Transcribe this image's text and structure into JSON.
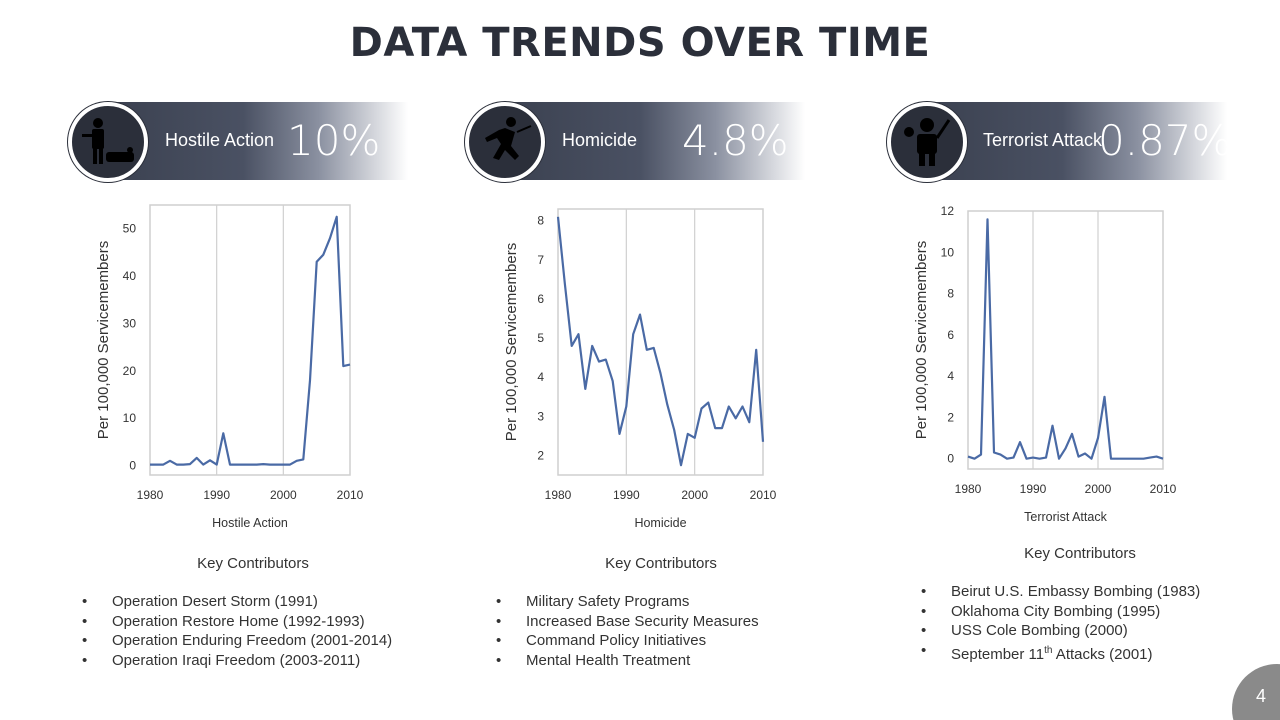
{
  "title": "DATA TRENDS OVER TIME",
  "page_number": "4",
  "panels": [
    {
      "label": "Hostile Action",
      "percent": "10%",
      "icon": "hostile-action-icon"
    },
    {
      "label": "Homicide",
      "percent": "4.8%",
      "icon": "homicide-icon"
    },
    {
      "label": "Terrorist Attack",
      "percent": "0.87%",
      "icon": "terrorist-attack-icon"
    }
  ],
  "contributors": [
    {
      "heading": "Key Contributors",
      "items": [
        "Operation Desert Storm (1991)",
        "Operation Restore Home (1992-1993)",
        "Operation Enduring Freedom (2001-2014)",
        "Operation Iraqi Freedom (2003-2011)"
      ]
    },
    {
      "heading": "Key Contributors",
      "items": [
        "Military Safety Programs",
        "Increased Base Security Measures",
        "Command Policy Initiatives",
        "Mental Health Treatment"
      ]
    },
    {
      "heading": "Key Contributors",
      "items": [
        "Beirut U.S. Embassy Bombing (1983)",
        "Oklahoma City Bombing (1995)",
        "USS Cole Bombing (2000)",
        "September 11th Attacks (2001)"
      ]
    }
  ],
  "chart_data": [
    {
      "type": "line",
      "xlabel": "Hostile Action",
      "ylabel": "Per 100,000 Servicemembers",
      "xlim": [
        1980,
        2010
      ],
      "ylim": [
        -2,
        55
      ],
      "xticks": [
        1980,
        1990,
        2000,
        2010
      ],
      "yticks": [
        0,
        10,
        20,
        30,
        40,
        50
      ],
      "grid": "vertical",
      "color": "#4a6aa5",
      "x": [
        1980,
        1981,
        1982,
        1983,
        1984,
        1985,
        1986,
        1987,
        1988,
        1989,
        1990,
        1991,
        1992,
        1993,
        1994,
        1995,
        1996,
        1997,
        1998,
        1999,
        2000,
        2001,
        2002,
        2003,
        2004,
        2005,
        2006,
        2007,
        2008,
        2009,
        2010
      ],
      "y": [
        0.2,
        0.2,
        0.2,
        1.0,
        0.2,
        0.2,
        0.3,
        1.6,
        0.2,
        1.1,
        0.2,
        6.8,
        0.2,
        0.2,
        0.2,
        0.2,
        0.2,
        0.3,
        0.2,
        0.2,
        0.2,
        0.2,
        1.0,
        1.3,
        18.0,
        43.0,
        44.5,
        48.0,
        52.5,
        21.0,
        21.3
      ]
    },
    {
      "type": "line",
      "xlabel": "Homicide",
      "ylabel": "Per 100,000 Servicemembers",
      "xlim": [
        1980,
        2010
      ],
      "ylim": [
        1.5,
        8.3
      ],
      "xticks": [
        1980,
        1990,
        2000,
        2010
      ],
      "yticks": [
        2,
        3,
        4,
        5,
        6,
        7,
        8
      ],
      "grid": "vertical",
      "color": "#4a6aa5",
      "x": [
        1980,
        1981,
        1982,
        1983,
        1984,
        1985,
        1986,
        1987,
        1988,
        1989,
        1990,
        1991,
        1992,
        1993,
        1994,
        1995,
        1996,
        1997,
        1998,
        1999,
        2000,
        2001,
        2002,
        2003,
        2004,
        2005,
        2006,
        2007,
        2008,
        2009,
        2010
      ],
      "y": [
        8.1,
        6.4,
        4.8,
        5.1,
        3.7,
        4.8,
        4.4,
        4.45,
        3.9,
        2.55,
        3.25,
        5.1,
        5.6,
        4.7,
        4.75,
        4.1,
        3.3,
        2.65,
        1.75,
        2.55,
        2.45,
        3.2,
        3.35,
        2.7,
        2.7,
        3.25,
        2.95,
        3.25,
        2.85,
        4.7,
        2.35
      ]
    },
    {
      "type": "line",
      "xlabel": "Terrorist Attack",
      "ylabel": "Per 100,000 Servicemembers",
      "xlim": [
        1980,
        2010
      ],
      "ylim": [
        -0.5,
        12
      ],
      "xticks": [
        1980,
        1990,
        2000,
        2010
      ],
      "yticks": [
        0,
        2,
        4,
        6,
        8,
        10,
        12
      ],
      "grid": "vertical",
      "color": "#4a6aa5",
      "x": [
        1980,
        1981,
        1982,
        1983,
        1984,
        1985,
        1986,
        1987,
        1988,
        1989,
        1990,
        1991,
        1992,
        1993,
        1994,
        1995,
        1996,
        1997,
        1998,
        1999,
        2000,
        2001,
        2002,
        2003,
        2004,
        2005,
        2006,
        2007,
        2008,
        2009,
        2010
      ],
      "y": [
        0.1,
        0.0,
        0.2,
        11.6,
        0.3,
        0.2,
        0.0,
        0.05,
        0.8,
        0.0,
        0.05,
        0.0,
        0.05,
        1.6,
        0.0,
        0.5,
        1.2,
        0.1,
        0.25,
        0.0,
        1.0,
        3.0,
        0.0,
        0.0,
        0.0,
        0.0,
        0.0,
        0.0,
        0.05,
        0.1,
        0.0
      ]
    }
  ]
}
